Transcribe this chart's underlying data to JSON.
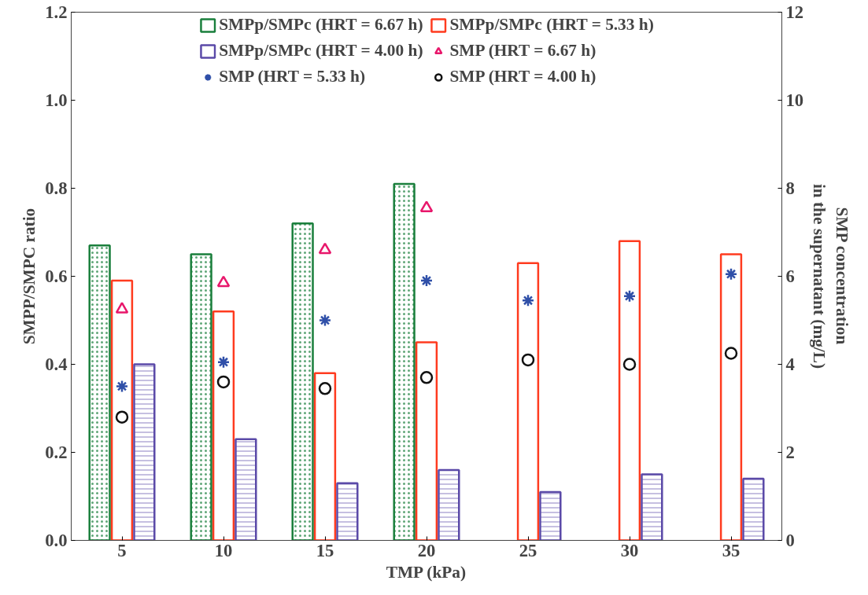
{
  "chart_data": {
    "type": "bar",
    "xlabel": "TMP (kPa)",
    "ylabel": "SMPP/SMPC ratio",
    "y2label": "SMP concentration\nin the supernatant (mg/L)",
    "categories": [
      "5",
      "10",
      "15",
      "20",
      "25",
      "30",
      "35"
    ],
    "ylim": [
      0,
      1.2
    ],
    "yticks": [
      {
        "value": 0,
        "label": "0.0"
      },
      0.2,
      0.4,
      0.6,
      0.8,
      {
        "value": 1,
        "label": "1.0"
      },
      1.2
    ],
    "y2lim": [
      0,
      12
    ],
    "y2ticks": [
      0,
      2,
      4,
      6,
      8,
      10,
      12
    ],
    "legend": "top",
    "grid": false,
    "series": [
      {
        "name": "SMPp/SMPc (HRT = 6.67 h)",
        "color": "#1a7f3c",
        "values": [
          0.67,
          0.65,
          0.72,
          0.81,
          null,
          null,
          null
        ]
      },
      {
        "name": "SMPp/SMPc (HRT = 5.33 h)",
        "color": "#ff3b1f",
        "values": [
          0.59,
          0.52,
          0.38,
          0.45,
          0.63,
          0.68,
          0.65
        ]
      },
      {
        "name": "SMPp/SMPc (HRT = 4.00 h)",
        "color": "#5b4aa8",
        "values": [
          0.4,
          0.23,
          0.13,
          0.16,
          0.11,
          0.15,
          0.14
        ]
      },
      {
        "name": "SMP (HRT = 6.67 h)",
        "type": "scatter",
        "axis": "y2",
        "marker": "triangle",
        "color": "#e8176b",
        "values": [
          5.25,
          5.85,
          6.6,
          7.55,
          null,
          null,
          null
        ]
      },
      {
        "name": "SMP (HRT = 5.33 h)",
        "type": "scatter",
        "axis": "y2",
        "marker": "cross",
        "color": "#2f4fa8",
        "values": [
          3.5,
          4.05,
          5.0,
          5.9,
          5.45,
          5.55,
          6.05
        ]
      },
      {
        "name": "SMP (HRT = 4.00 h)",
        "type": "scatter",
        "axis": "y2",
        "marker": "circle",
        "color": "#111111",
        "values": [
          2.8,
          3.6,
          3.45,
          3.7,
          4.1,
          4.0,
          4.25
        ]
      }
    ]
  }
}
